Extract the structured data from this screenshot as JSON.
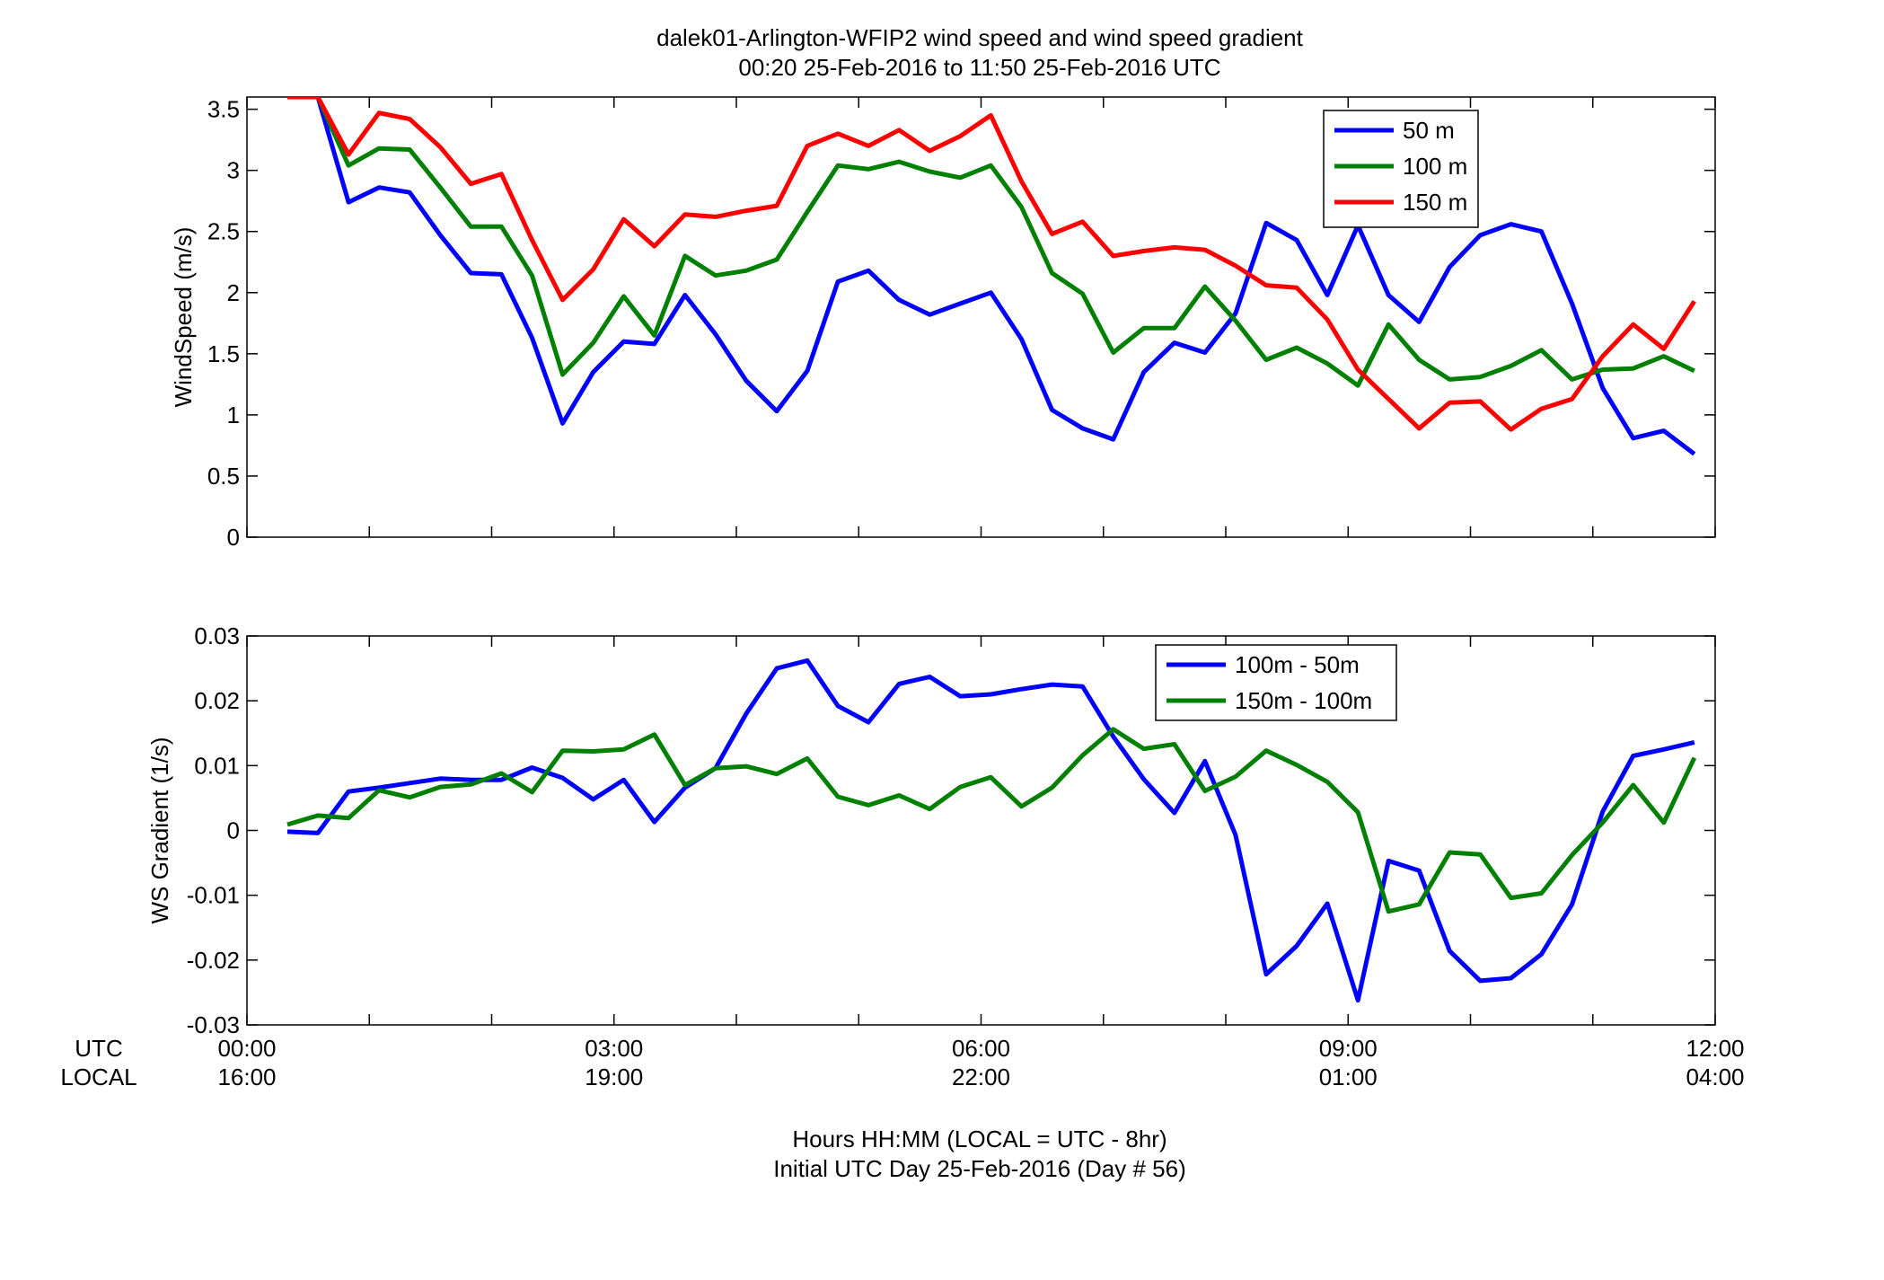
{
  "figure": {
    "title_line1": "dalek01-Arlington-WFIP2  wind speed and wind speed gradient",
    "title_line2": "00:20 25-Feb-2016 to 11:50 25-Feb-2016  UTC",
    "row_label_utc": "UTC",
    "row_label_local": "LOCAL",
    "xlabel_line1": "Hours HH:MM  (LOCAL = UTC - 8hr)",
    "xlabel_line2": "Initial UTC Day 25-Feb-2016 (Day # 56)"
  },
  "colors": {
    "blue": "#0000ff",
    "green": "#008000",
    "red": "#ff0000"
  },
  "chart_data": [
    {
      "type": "line",
      "ylabel": "WindSpeed (m/s)",
      "xlim": [
        0,
        12
      ],
      "ylim": [
        0,
        3.6
      ],
      "grid": false,
      "legend_position": "top-right",
      "yticks": [
        0,
        0.5,
        1,
        1.5,
        2,
        2.5,
        3,
        3.5
      ],
      "ytick_labels": [
        "0",
        "0.5",
        "1",
        "1.5",
        "2",
        "2.5",
        "3",
        "3.5"
      ],
      "x": [
        0.33,
        0.58,
        0.83,
        1.08,
        1.33,
        1.58,
        1.83,
        2.08,
        2.33,
        2.58,
        2.83,
        3.08,
        3.33,
        3.58,
        3.83,
        4.08,
        4.33,
        4.58,
        4.83,
        5.08,
        5.33,
        5.58,
        5.83,
        6.08,
        6.33,
        6.58,
        6.83,
        7.08,
        7.33,
        7.58,
        7.83,
        8.08,
        8.33,
        8.58,
        8.83,
        9.08,
        9.33,
        9.58,
        9.83,
        10.08,
        10.33,
        10.58,
        10.83,
        11.08,
        11.33,
        11.58,
        11.83
      ],
      "series": [
        {
          "name": "50 m",
          "color": "#0000ff",
          "values": [
            3.6,
            3.6,
            2.74,
            2.86,
            2.82,
            2.47,
            2.16,
            2.15,
            1.63,
            0.93,
            1.35,
            1.6,
            1.58,
            1.98,
            1.66,
            1.28,
            1.03,
            1.36,
            2.09,
            2.18,
            1.94,
            1.82,
            1.91,
            2.0,
            1.62,
            1.04,
            0.89,
            0.8,
            1.35,
            1.59,
            1.51,
            1.83,
            2.57,
            2.43,
            1.98,
            2.55,
            1.98,
            1.76,
            2.21,
            2.47,
            2.56,
            2.5,
            1.91,
            1.22,
            0.81,
            0.87,
            0.68
          ]
        },
        {
          "name": "100 m",
          "color": "#008000",
          "values": [
            3.6,
            3.6,
            3.04,
            3.18,
            3.17,
            2.86,
            2.54,
            2.54,
            2.14,
            1.33,
            1.59,
            1.97,
            1.65,
            2.3,
            2.14,
            2.18,
            2.27,
            2.66,
            3.04,
            3.01,
            3.07,
            2.99,
            2.94,
            3.04,
            2.7,
            2.16,
            1.99,
            1.51,
            1.71,
            1.71,
            2.05,
            1.77,
            1.45,
            1.55,
            1.42,
            1.24,
            1.74,
            1.45,
            1.29,
            1.31,
            1.4,
            1.53,
            1.29,
            1.37,
            1.38,
            1.48,
            1.36
          ]
        },
        {
          "name": "150 m",
          "color": "#ff0000",
          "values": [
            3.6,
            3.6,
            3.13,
            3.47,
            3.42,
            3.19,
            2.89,
            2.97,
            2.43,
            1.94,
            2.19,
            2.6,
            2.38,
            2.64,
            2.62,
            2.67,
            2.71,
            3.2,
            3.3,
            3.2,
            3.33,
            3.16,
            3.28,
            3.45,
            2.91,
            2.48,
            2.58,
            2.3,
            2.34,
            2.37,
            2.35,
            2.22,
            2.06,
            2.04,
            1.78,
            1.37,
            1.13,
            0.89,
            1.1,
            1.11,
            0.88,
            1.05,
            1.13,
            1.48,
            1.74,
            1.54,
            1.93
          ]
        }
      ]
    },
    {
      "type": "line",
      "ylabel": "WS Gradient (1/s)",
      "xlim": [
        0,
        12
      ],
      "ylim": [
        -0.03,
        0.03
      ],
      "grid": false,
      "legend_position": "top-right",
      "yticks": [
        -0.03,
        -0.02,
        -0.01,
        0,
        0.01,
        0.02,
        0.03
      ],
      "ytick_labels": [
        "-0.03",
        "-0.02",
        "-0.01",
        "0",
        "0.01",
        "0.02",
        "0.03"
      ],
      "xticks": [
        0,
        3,
        6,
        9,
        12
      ],
      "xtick_labels_utc": [
        "00:00",
        "03:00",
        "06:00",
        "09:00",
        "12:00"
      ],
      "xtick_labels_local": [
        "16:00",
        "19:00",
        "22:00",
        "01:00",
        "04:00"
      ],
      "x": [
        0.33,
        0.58,
        0.83,
        1.08,
        1.33,
        1.58,
        1.83,
        2.08,
        2.33,
        2.58,
        2.83,
        3.08,
        3.33,
        3.58,
        3.83,
        4.08,
        4.33,
        4.58,
        4.83,
        5.08,
        5.33,
        5.58,
        5.83,
        6.08,
        6.33,
        6.58,
        6.83,
        7.08,
        7.33,
        7.58,
        7.83,
        8.08,
        8.33,
        8.58,
        8.83,
        9.08,
        9.33,
        9.58,
        9.83,
        10.08,
        10.33,
        10.58,
        10.83,
        11.08,
        11.33,
        11.58,
        11.83
      ],
      "series": [
        {
          "name": "100m - 50m",
          "color": "#0000ff",
          "values": [
            -0.0002,
            -0.0004,
            0.006,
            0.0066,
            0.0073,
            0.008,
            0.0078,
            0.0078,
            0.0097,
            0.0081,
            0.0048,
            0.0078,
            0.0013,
            0.0066,
            0.0096,
            0.018,
            0.025,
            0.0262,
            0.0192,
            0.0167,
            0.0226,
            0.0237,
            0.0207,
            0.021,
            0.0218,
            0.0225,
            0.0222,
            0.0145,
            0.0079,
            0.0027,
            0.0107,
            -0.0007,
            -0.0222,
            -0.0178,
            -0.0113,
            -0.0262,
            -0.0047,
            -0.0062,
            -0.0186,
            -0.0232,
            -0.0228,
            -0.0191,
            -0.0114,
            0.0029,
            0.0115,
            0.0125,
            0.0136
          ]
        },
        {
          "name": "150m - 100m",
          "color": "#008000",
          "values": [
            0.0009,
            0.0023,
            0.0019,
            0.0062,
            0.0051,
            0.0067,
            0.0071,
            0.0088,
            0.0059,
            0.0123,
            0.0122,
            0.0125,
            0.0148,
            0.007,
            0.0096,
            0.0099,
            0.0087,
            0.0111,
            0.0052,
            0.0039,
            0.0054,
            0.0033,
            0.0067,
            0.0082,
            0.0037,
            0.0066,
            0.0116,
            0.0156,
            0.0126,
            0.0133,
            0.0061,
            0.0083,
            0.0123,
            0.0101,
            0.0075,
            0.0028,
            -0.0125,
            -0.0114,
            -0.0034,
            -0.0037,
            -0.0104,
            -0.0097,
            -0.0038,
            0.0012,
            0.007,
            0.0012,
            0.0112
          ]
        }
      ]
    }
  ]
}
